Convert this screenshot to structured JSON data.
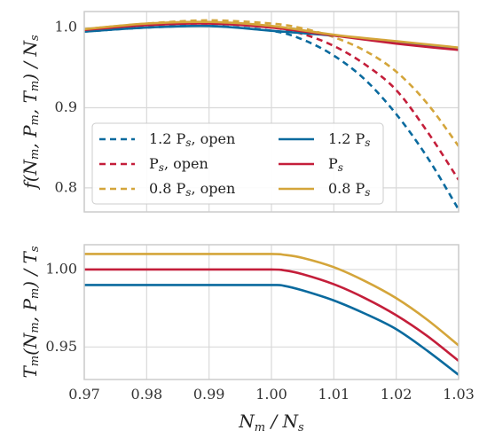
{
  "chart_data": [
    {
      "type": "line",
      "ylabel": "f(N_m, P_m, T_m) / N_s",
      "xlim": [
        0.97,
        1.03
      ],
      "ylim": [
        0.77,
        1.02
      ],
      "grid": true,
      "x_ticks": [
        "0.97",
        "0.98",
        "0.99",
        "1.00",
        "1.01",
        "1.02",
        "1.03"
      ],
      "y_ticks": [
        {
          "value": 1.0,
          "label": "1.0"
        },
        {
          "value": 0.9,
          "label": "0.9"
        },
        {
          "value": 0.8,
          "label": "0.8"
        }
      ],
      "legend_position": "lower-left",
      "series": [
        {
          "name": "1.2 P_s, open",
          "color": "#0a6a9e",
          "style": "dashed",
          "x": [
            0.97,
            0.98,
            0.99,
            1.0,
            1.005,
            1.01,
            1.015,
            1.02,
            1.025,
            1.03
          ],
          "y": [
            0.995,
            1.0,
            1.002,
            0.996,
            0.985,
            0.965,
            0.935,
            0.892,
            0.838,
            0.773
          ]
        },
        {
          "name": "P_s, open",
          "color": "#c41e3a",
          "style": "dashed",
          "x": [
            0.97,
            0.98,
            0.99,
            1.0,
            1.005,
            1.01,
            1.015,
            1.02,
            1.025,
            1.03
          ],
          "y": [
            0.997,
            1.003,
            1.005,
            1.0,
            0.992,
            0.977,
            0.954,
            0.922,
            0.87,
            0.81
          ]
        },
        {
          "name": "0.8 P_s, open",
          "color": "#d4a53a",
          "style": "dashed",
          "x": [
            0.97,
            0.98,
            0.99,
            1.0,
            1.005,
            1.01,
            1.015,
            1.02,
            1.025,
            1.03
          ],
          "y": [
            0.998,
            1.005,
            1.009,
            1.005,
            0.999,
            0.988,
            0.971,
            0.945,
            0.905,
            0.852
          ]
        },
        {
          "name": "1.2 P_s",
          "color": "#0a6a9e",
          "style": "solid",
          "x": [
            0.97,
            0.98,
            0.99,
            1.0,
            1.01,
            1.02,
            1.03
          ],
          "y": [
            0.995,
            1.0,
            1.002,
            0.996,
            0.99,
            0.982,
            0.974
          ]
        },
        {
          "name": "P_s",
          "color": "#c41e3a",
          "style": "solid",
          "x": [
            0.97,
            0.98,
            0.99,
            1.0,
            1.01,
            1.02,
            1.03
          ],
          "y": [
            0.997,
            1.003,
            1.005,
            1.0,
            0.99,
            0.98,
            0.972
          ]
        },
        {
          "name": "0.8 P_s",
          "color": "#d4a53a",
          "style": "solid",
          "x": [
            0.97,
            0.98,
            0.99,
            1.0,
            1.01,
            1.02,
            1.03
          ],
          "y": [
            0.998,
            1.005,
            1.007,
            1.002,
            0.991,
            0.983,
            0.975
          ]
        }
      ]
    },
    {
      "type": "line",
      "xlabel": "N_m / N_s",
      "ylabel": "T_m(N_m, P_m) / T_s",
      "xlim": [
        0.97,
        1.03
      ],
      "ylim": [
        0.929,
        1.016
      ],
      "grid": true,
      "x_ticks": [
        "0.97",
        "0.98",
        "0.99",
        "1.00",
        "1.01",
        "1.02",
        "1.03"
      ],
      "y_ticks": [
        {
          "value": 1.0,
          "label": "1.00"
        },
        {
          "value": 0.95,
          "label": "0.95"
        }
      ],
      "series": [
        {
          "name": "1.2 P_s",
          "color": "#0a6a9e",
          "style": "solid",
          "x": [
            0.97,
            0.98,
            0.99,
            1.0,
            1.002,
            1.005,
            1.01,
            1.015,
            1.02,
            1.025,
            1.03
          ],
          "y": [
            0.99,
            0.99,
            0.99,
            0.99,
            0.9895,
            0.9865,
            0.98,
            0.9715,
            0.9615,
            0.9475,
            0.932
          ]
        },
        {
          "name": "P_s",
          "color": "#c41e3a",
          "style": "solid",
          "x": [
            0.97,
            0.98,
            0.99,
            1.0,
            1.002,
            1.005,
            1.01,
            1.015,
            1.02,
            1.025,
            1.03
          ],
          "y": [
            1.0,
            1.0,
            1.0,
            1.0,
            0.9995,
            0.997,
            0.9905,
            0.9815,
            0.9705,
            0.957,
            0.941
          ]
        },
        {
          "name": "0.8 P_s",
          "color": "#d4a53a",
          "style": "solid",
          "x": [
            0.97,
            0.98,
            0.99,
            1.0,
            1.002,
            1.005,
            1.01,
            1.015,
            1.02,
            1.025,
            1.03
          ],
          "y": [
            1.01,
            1.01,
            1.01,
            1.01,
            1.0095,
            1.0075,
            1.0015,
            0.9925,
            0.9815,
            0.9675,
            0.951
          ]
        }
      ]
    }
  ]
}
